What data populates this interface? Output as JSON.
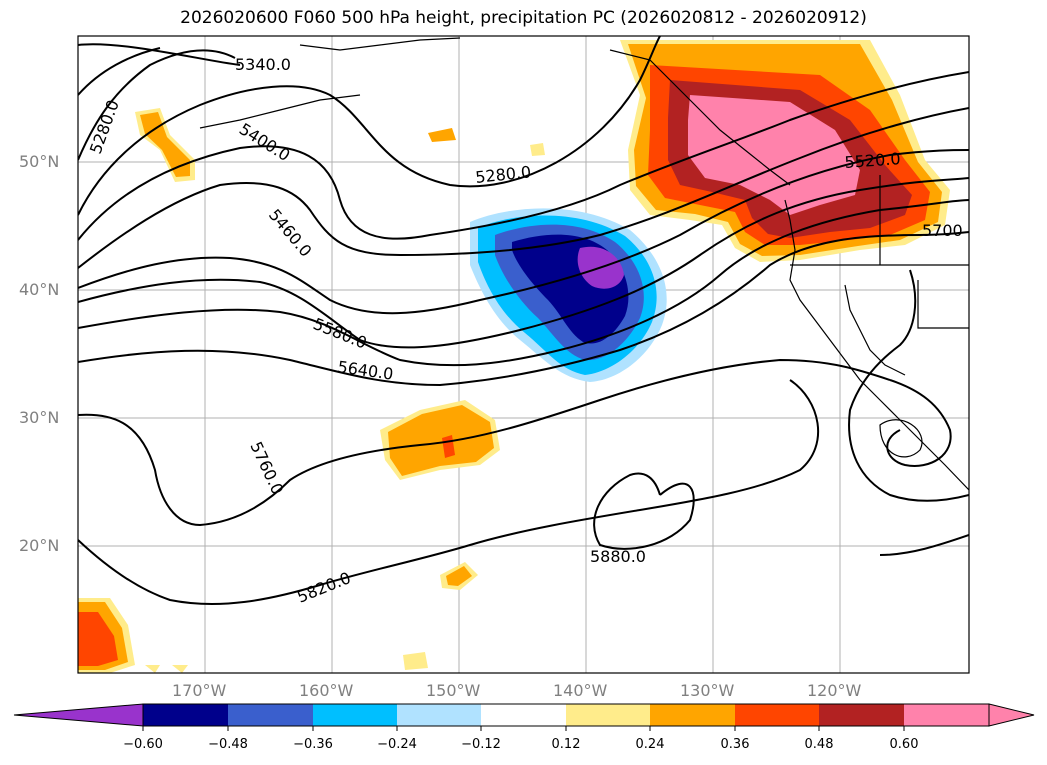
{
  "title": "2026020600 F060 500 hPa height, precipitation PC (2026020812 - 2026020912)",
  "lat_labels": [
    "50°N",
    "40°N",
    "30°N",
    "20°N"
  ],
  "lon_labels": [
    "170°W",
    "160°W",
    "150°W",
    "140°W",
    "130°W",
    "120°W"
  ],
  "contour_labels": [
    "5280.0",
    "5340.0",
    "5400.0",
    "5460.0",
    "5580.0",
    "5640.0",
    "5760.0",
    "5820.0",
    "5280.0",
    "5520.0",
    "5700",
    "5880.0"
  ],
  "colorbar": {
    "tick_labels": [
      "−0.60",
      "−0.48",
      "−0.36",
      "−0.24",
      "−0.12",
      "0.12",
      "0.24",
      "0.36",
      "0.48",
      "0.60"
    ],
    "colors": [
      "#9933cc",
      "#00008b",
      "#3a5fcd",
      "#00bfff",
      "#b0e2ff",
      "#ffffff",
      "#ffec8b",
      "#ffa500",
      "#ff4500",
      "#b22222",
      "#ff82ab",
      "#ff82ab"
    ]
  },
  "shading_colors": {
    "neg_light": "#b0e2ff",
    "neg_1": "#00bfff",
    "neg_2": "#3a5fcd",
    "neg_3": "#00008b",
    "neg_4": "#9933cc",
    "pos_light": "#ffec8b",
    "pos_1": "#ffa500",
    "pos_2": "#ff4500",
    "pos_3": "#b22222",
    "pos_4": "#ff82ab"
  }
}
